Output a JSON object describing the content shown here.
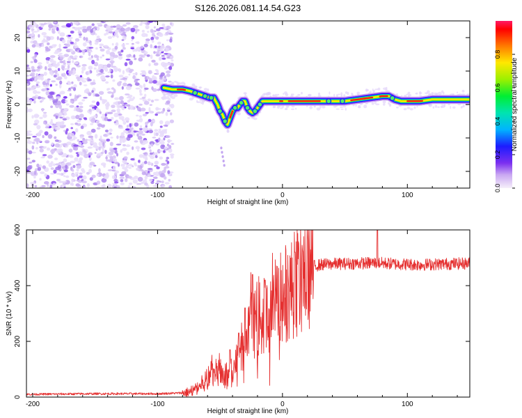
{
  "title": "S126.2026.081.14.54.G23",
  "chart_data": [
    {
      "type": "heatmap",
      "name": "spectrogram",
      "xlabel": "Height of straight line (km)",
      "ylabel": "Frequency (Hz)",
      "xlim": [
        -205,
        150
      ],
      "ylim": [
        -25,
        25
      ],
      "xticks": [
        -200,
        -100,
        0,
        100
      ],
      "xtick_labels": [
        "-200",
        "-100",
        "0",
        "100"
      ],
      "yticks": [
        -20,
        -10,
        0,
        10,
        20
      ],
      "ytick_labels": [
        "-20",
        "-10",
        "0",
        "10",
        "20"
      ],
      "noise_region_x": [
        -205,
        -88
      ],
      "ridge": {
        "x": [
          -95,
          -88,
          -80,
          -74,
          -70,
          -66,
          -62,
          -58,
          -55,
          -52,
          -50,
          -48,
          -46,
          -44,
          -42,
          -40,
          -38,
          -36,
          -34,
          -32,
          -30,
          -28,
          -26,
          -24,
          -22,
          -20,
          -18,
          -16,
          -14,
          -12,
          -10,
          -5,
          0,
          10,
          20,
          30,
          40,
          50,
          60,
          70,
          80,
          85,
          90,
          95,
          100,
          110,
          120,
          130,
          140,
          150
        ],
        "y": [
          5,
          4.5,
          4.5,
          4,
          3.5,
          3,
          2.5,
          2,
          2,
          0,
          -2,
          -3,
          -5,
          -6,
          -4,
          -2,
          -1,
          -1,
          0,
          1,
          1,
          -1,
          -2,
          -2.5,
          -2,
          -1,
          0,
          1,
          1,
          1,
          1,
          1,
          1,
          1,
          1,
          1,
          1,
          1,
          1.5,
          2,
          2.5,
          2.5,
          1.5,
          1,
          1,
          1,
          1.5,
          1.5,
          1.5,
          1.5
        ]
      },
      "colorbar": {
        "label": "Normalized spectral amplitude",
        "range": [
          0,
          1
        ],
        "ticks": [
          0.0,
          0.2,
          0.4,
          0.6,
          0.8
        ],
        "tick_labels": [
          "0.0",
          "0.2",
          "0.4",
          "0.6",
          "0.8"
        ]
      }
    },
    {
      "type": "line",
      "name": "snr",
      "xlabel": "Height of straight line (km)",
      "ylabel": "SNR (10 * v/v)",
      "xlim": [
        -205,
        150
      ],
      "ylim": [
        0,
        600
      ],
      "xticks": [
        -200,
        -100,
        0,
        100
      ],
      "xtick_labels": [
        "-200",
        "-100",
        "0",
        "100"
      ],
      "yticks": [
        0,
        200,
        400,
        600
      ],
      "ytick_labels": [
        "0",
        "200",
        "400",
        "600"
      ],
      "color": "#e53030",
      "envelope": {
        "x": [
          -205,
          -150,
          -100,
          -80,
          -75,
          -70,
          -65,
          -60,
          -55,
          -50,
          -45,
          -40,
          -35,
          -30,
          -25,
          -20,
          -15,
          -10,
          -5,
          0,
          5,
          10,
          15,
          20,
          25,
          30,
          40,
          60,
          75,
          90,
          110,
          130,
          150
        ],
        "y": [
          10,
          12,
          12,
          15,
          18,
          25,
          45,
          65,
          85,
          95,
          80,
          90,
          150,
          170,
          260,
          270,
          290,
          280,
          330,
          360,
          380,
          400,
          420,
          450,
          470,
          475,
          478,
          480,
          482,
          478,
          475,
          478,
          480
        ]
      },
      "spikes": [
        {
          "x": -42,
          "y": 170
        },
        {
          "x": -35,
          "y": 230
        },
        {
          "x": -30,
          "y": 320
        },
        {
          "x": -24,
          "y": 440
        },
        {
          "x": -14,
          "y": 420
        },
        {
          "x": 10,
          "y": 520
        },
        {
          "x": 76,
          "y": 600
        }
      ]
    }
  ]
}
